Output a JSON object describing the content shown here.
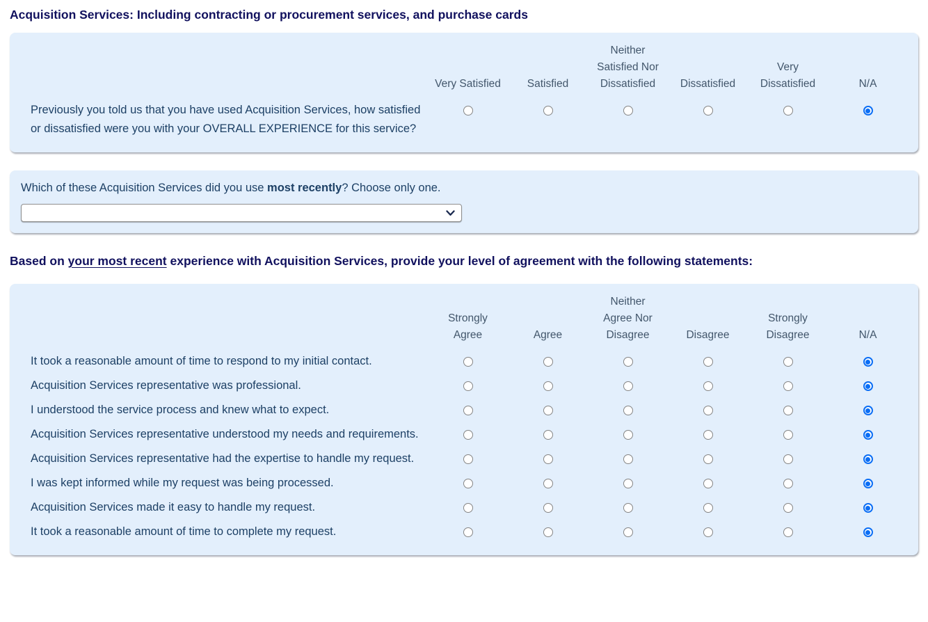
{
  "page": {
    "title": "Acquisition Services: Including contracting or procurement services, and purchase cards"
  },
  "satisfaction_matrix": {
    "columns": [
      "Very Satisfied",
      "Satisfied",
      "Neither\nSatisfied Nor\nDissatisfied",
      "Dissatisfied",
      "Very\nDissatisfied",
      "N/A"
    ],
    "rows": [
      {
        "label": "Previously you told us that you have used Acquisition Services, how satisfied or dissatisfied were you with your OVERALL EXPERIENCE for this service?",
        "selected_index": 5,
        "selected_label": "N/A"
      }
    ]
  },
  "recent_service_question": {
    "prefix": "Which of these Acquisition Services did you use ",
    "emphasis": "most recently",
    "suffix": "? Choose only one.",
    "select_value": ""
  },
  "agreement_intro": {
    "prefix": "Based on ",
    "emphasis": "your most recent",
    "suffix": " experience with Acquisition Services, provide your level of agreement with the following statements:"
  },
  "agreement_matrix": {
    "columns": [
      "Strongly\nAgree",
      "Agree",
      "Neither\nAgree Nor\nDisagree",
      "Disagree",
      "Strongly\nDisagree",
      "N/A"
    ],
    "rows": [
      {
        "label": "It took a reasonable amount of time to respond to my initial contact.",
        "selected_index": 5,
        "selected_label": "N/A"
      },
      {
        "label": "Acquisition Services representative was professional.",
        "selected_index": 5,
        "selected_label": "N/A"
      },
      {
        "label": "I understood the service process and knew what to expect.",
        "selected_index": 5,
        "selected_label": "N/A"
      },
      {
        "label": "Acquisition Services representative understood my needs and requirements.",
        "selected_index": 5,
        "selected_label": "N/A"
      },
      {
        "label": "Acquisition Services representative had the expertise to handle my request.",
        "selected_index": 5,
        "selected_label": "N/A"
      },
      {
        "label": "I was kept informed while my request was being processed.",
        "selected_index": 5,
        "selected_label": "N/A"
      },
      {
        "label": "Acquisition Services made it easy to handle my request.",
        "selected_index": 5,
        "selected_label": "N/A"
      },
      {
        "label": "It took a reasonable amount of time to complete my request.",
        "selected_index": 5,
        "selected_label": "N/A"
      }
    ]
  },
  "colors": {
    "panel_background": "#e3effc",
    "radio_accent": "#0b6ef5",
    "title_text": "#11115e",
    "body_text": "#1d4065",
    "column_header_text": "#42566b"
  }
}
